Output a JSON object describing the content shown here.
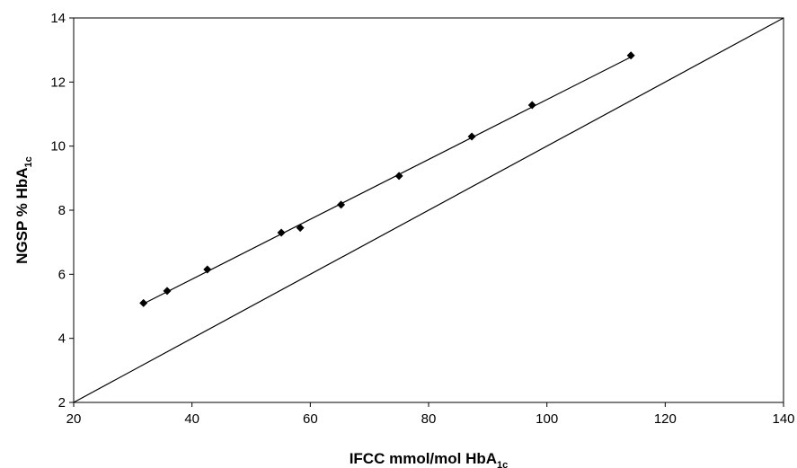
{
  "chart_data": {
    "type": "scatter",
    "xlabel": {
      "main": "IFCC mmol/mol HbA",
      "sub": "1c"
    },
    "ylabel": {
      "main": "NGSP % HbA",
      "sub": "1c"
    },
    "xlim": [
      20,
      140
    ],
    "ylim": [
      2,
      14
    ],
    "xticks": [
      20,
      40,
      60,
      80,
      100,
      120,
      140
    ],
    "yticks": [
      2,
      4,
      6,
      8,
      10,
      12,
      14
    ],
    "grid": false,
    "legend": "none",
    "series": [
      {
        "kind": "points",
        "marker": "diamond",
        "x": [
          31.8,
          35.8,
          42.6,
          55.1,
          58.3,
          65.2,
          75.0,
          87.3,
          97.5,
          114.2
        ],
        "y": [
          5.1,
          5.48,
          6.15,
          7.3,
          7.45,
          8.17,
          9.07,
          10.3,
          11.28,
          12.83
        ]
      },
      {
        "kind": "fit-line",
        "x": [
          31.8,
          114.2
        ],
        "y": [
          5.08,
          12.78
        ]
      },
      {
        "kind": "reference-line",
        "x": [
          20,
          140
        ],
        "y": [
          2,
          14
        ]
      }
    ],
    "colors": {
      "marks": "#000000",
      "background": "#ffffff"
    }
  }
}
